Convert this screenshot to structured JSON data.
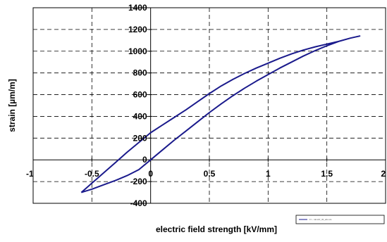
{
  "chart_data": {
    "type": "line",
    "xlabel": "electric field strength [kV/mm]",
    "ylabel": "strain [µm/m]",
    "xlim": [
      -1,
      2
    ],
    "ylim": [
      -400,
      1400
    ],
    "x_ticks": [
      -1,
      -0.5,
      0,
      0.5,
      1,
      1.5,
      2
    ],
    "x_tick_labels": [
      "-1",
      "-0.5",
      "0",
      "0.5",
      "1",
      "1.5",
      "2"
    ],
    "y_ticks": [
      -400,
      -200,
      0,
      200,
      400,
      600,
      800,
      1000,
      1200,
      1400
    ],
    "y_tick_labels": [
      "-400",
      "-200",
      "0",
      "200",
      "400",
      "600",
      "800",
      "1000",
      "1200",
      "1400"
    ],
    "grid": true,
    "legend": "bottom-right",
    "line_color": "#1a1a8c",
    "series": [
      {
        "name": "F:\\...\\dms\\P_30_abs.xls",
        "x": [
          -0.59,
          -0.5,
          -0.4,
          -0.3,
          -0.2,
          -0.1,
          0,
          0.1,
          0.2,
          0.3,
          0.4,
          0.5,
          0.6,
          0.7,
          0.8,
          0.9,
          1.0,
          1.1,
          1.2,
          1.3,
          1.4,
          1.5,
          1.6,
          1.7,
          1.78,
          1.7,
          1.6,
          1.5,
          1.4,
          1.3,
          1.2,
          1.1,
          1.0,
          0.9,
          0.8,
          0.7,
          0.6,
          0.5,
          0.4,
          0.3,
          0.2,
          0.1,
          0,
          -0.1,
          -0.2,
          -0.3,
          -0.4,
          -0.5,
          -0.59
        ],
        "y": [
          -300,
          -270,
          -230,
          -190,
          -145,
          -90,
          0,
          90,
          180,
          265,
          350,
          435,
          515,
          590,
          660,
          725,
          785,
          845,
          900,
          955,
          1005,
          1050,
          1090,
          1120,
          1140,
          1120,
          1090,
          1065,
          1040,
          1010,
          975,
          935,
          890,
          845,
          795,
          740,
          680,
          610,
          535,
          460,
          390,
          320,
          250,
          160,
          70,
          -25,
          -120,
          -215,
          -300
        ]
      }
    ]
  }
}
